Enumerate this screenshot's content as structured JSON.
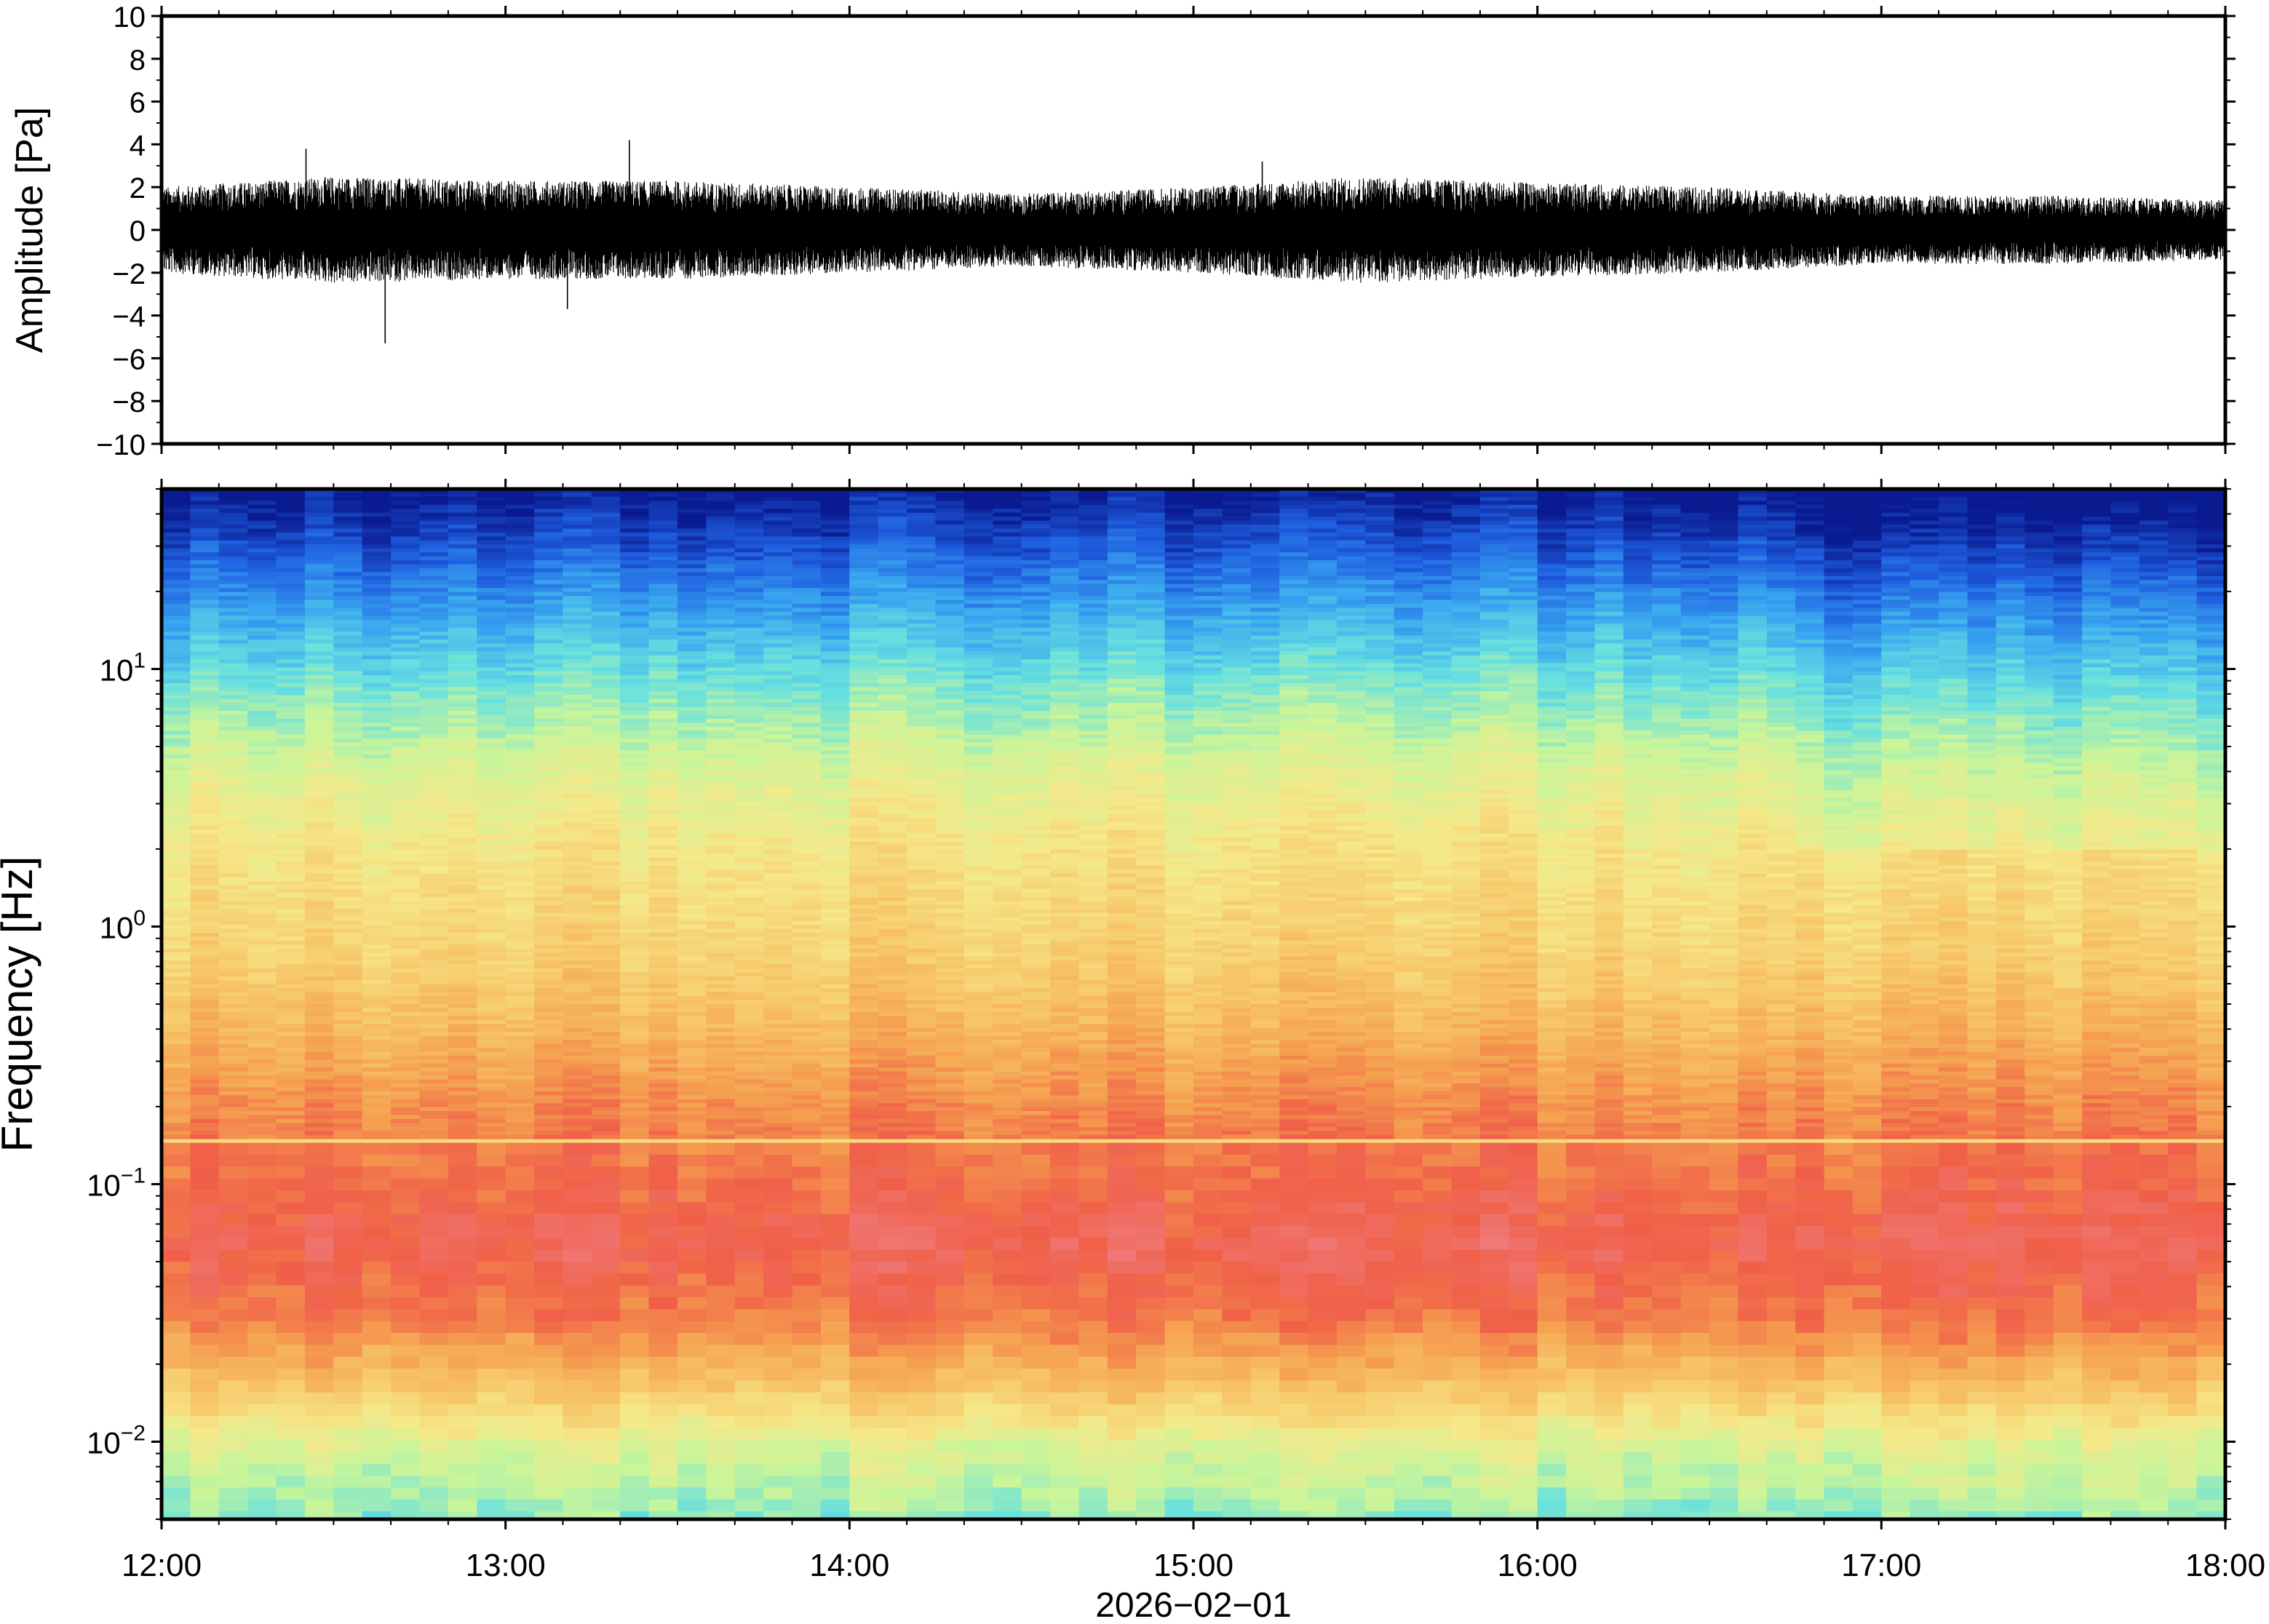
{
  "chart_data": [
    {
      "type": "line",
      "ylabel": "Amplitude [Pa]",
      "ylim": [
        -10,
        10
      ],
      "yticks": [
        -10,
        -8,
        -6,
        -4,
        -2,
        0,
        2,
        4,
        6,
        8,
        10
      ],
      "ytick_labels": [
        "−10",
        "−8",
        "−6",
        "−4",
        "−2",
        "0",
        "2",
        "4",
        "6",
        "8",
        "10"
      ],
      "xlim_hours": [
        12,
        18
      ],
      "x_unit": "hour of day, 2026-02-01",
      "series": [
        {
          "values_description": "waveform samples (peak envelope per 2-minute bin)",
          "x_hours": [
            12.0,
            12.5,
            13.0,
            13.5,
            14.0,
            14.5,
            15.0,
            15.5,
            16.0,
            16.5,
            17.0,
            17.5,
            18.0
          ],
          "upper_envelope": [
            2.0,
            2.5,
            2.3,
            2.3,
            2.0,
            1.7,
            2.0,
            2.5,
            2.2,
            2.0,
            1.6,
            1.6,
            1.4
          ],
          "lower_envelope": [
            -2.0,
            -2.5,
            -2.3,
            -2.3,
            -2.0,
            -1.7,
            -2.0,
            -2.5,
            -2.2,
            -2.0,
            -1.6,
            -1.6,
            -1.4
          ],
          "notable_peaks": [
            {
              "x": 12.42,
              "y": 3.8
            },
            {
              "x": 12.65,
              "y": -5.3
            },
            {
              "x": 13.36,
              "y": 4.2
            },
            {
              "x": 13.18,
              "y": -3.7
            },
            {
              "x": 15.2,
              "y": 3.2
            }
          ]
        }
      ]
    },
    {
      "type": "heatmap",
      "ylabel": "Frequency [Hz]",
      "xlabel": "2026−02−01",
      "yscale": "log",
      "ylim_hz": [
        0.005,
        50
      ],
      "xlim_hours": [
        12,
        18
      ],
      "x_tick_labels": [
        "12:00",
        "13:00",
        "14:00",
        "15:00",
        "16:00",
        "17:00",
        "18:00"
      ],
      "x_tick_hours": [
        12,
        13,
        14,
        15,
        16,
        17,
        18
      ],
      "y_tick_labels": [
        {
          "base": "10",
          "exp": "−2",
          "value": 0.01
        },
        {
          "base": "10",
          "exp": "−1",
          "value": 0.1
        },
        {
          "base": "10",
          "exp": "0",
          "value": 1
        },
        {
          "base": "10",
          "exp": "1",
          "value": 10
        }
      ],
      "colormap": "rainbow (blue low → red high)",
      "color_stops": [
        "#0a1a8f",
        "#1f5fe0",
        "#3aa8f0",
        "#66e0e0",
        "#c8f59a",
        "#f5e98a",
        "#f7c86a",
        "#f5a050",
        "#f06048",
        "#f07a7a"
      ],
      "power_profile_by_frequency": [
        {
          "freq_hz": 50,
          "level": 0.0
        },
        {
          "freq_hz": 30,
          "level": 0.1
        },
        {
          "freq_hz": 15,
          "level": 0.25
        },
        {
          "freq_hz": 8,
          "level": 0.38
        },
        {
          "freq_hz": 4,
          "level": 0.5
        },
        {
          "freq_hz": 2,
          "level": 0.58
        },
        {
          "freq_hz": 0.8,
          "level": 0.64
        },
        {
          "freq_hz": 0.4,
          "level": 0.72
        },
        {
          "freq_hz": 0.2,
          "level": 0.82
        },
        {
          "freq_hz": 0.1,
          "level": 0.88
        },
        {
          "freq_hz": 0.06,
          "level": 0.93
        },
        {
          "freq_hz": 0.03,
          "level": 0.84
        },
        {
          "freq_hz": 0.018,
          "level": 0.7
        },
        {
          "freq_hz": 0.01,
          "level": 0.5
        },
        {
          "freq_hz": 0.005,
          "level": 0.38
        }
      ]
    }
  ]
}
